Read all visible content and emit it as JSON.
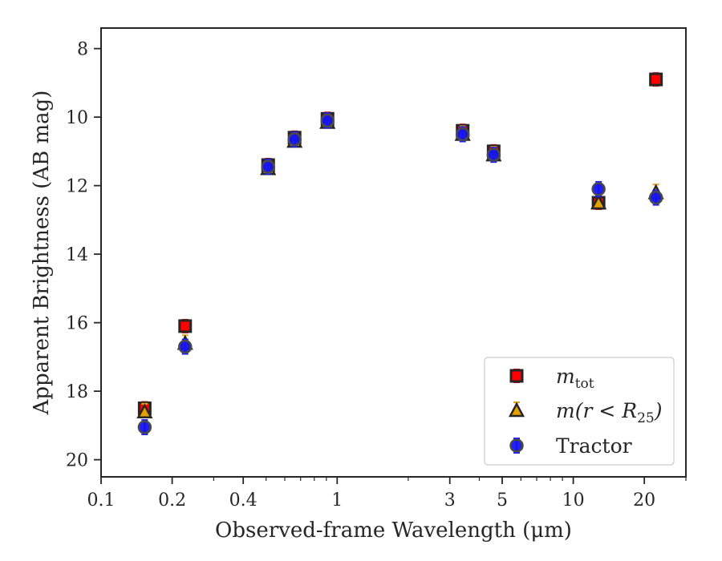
{
  "chart_data": {
    "type": "scatter",
    "xlabel": "Observed-frame Wavelength (μm)",
    "ylabel": "Apparent Brightness (AB mag)",
    "xscale": "log",
    "xlim": [
      0.1,
      30
    ],
    "ylim": [
      20.5,
      7.4
    ],
    "yaxis_inverted": true,
    "grid": false,
    "legend_position": "bottom-right",
    "x_ticks": [
      0.1,
      0.2,
      0.4,
      1,
      3,
      5,
      10,
      20
    ],
    "x_tick_labels": [
      "0.1",
      "0.2",
      "0.4",
      "1",
      "3",
      "5",
      "10",
      "20"
    ],
    "y_ticks": [
      8,
      10,
      12,
      14,
      16,
      18,
      20
    ],
    "y_tick_labels": [
      "8",
      "10",
      "12",
      "14",
      "16",
      "18",
      "20"
    ],
    "series": [
      {
        "name": "m_tot",
        "marker": "square",
        "color": "#ff0000",
        "errorbar_color": "#ff0000",
        "x": [
          0.153,
          0.227,
          0.51,
          0.66,
          0.91,
          3.4,
          4.6,
          12.8,
          22.4
        ],
        "y": [
          18.5,
          16.1,
          11.4,
          10.6,
          10.05,
          10.4,
          11.0,
          12.5,
          8.9
        ]
      },
      {
        "name": "m(r < R25)",
        "marker": "triangle",
        "color": "#e69f00",
        "errorbar_color": "#e6a817",
        "x": [
          0.153,
          0.227,
          0.51,
          0.66,
          0.91,
          3.4,
          4.6,
          12.8,
          22.4
        ],
        "y": [
          18.6,
          16.6,
          11.5,
          10.7,
          10.15,
          10.5,
          11.1,
          12.5,
          12.2
        ]
      },
      {
        "name": "Tractor",
        "marker": "circle",
        "color": "#1515ee",
        "errorbar_color": "#1a1aff",
        "x": [
          0.153,
          0.227,
          0.51,
          0.66,
          0.91,
          3.4,
          4.6,
          12.8,
          22.4
        ],
        "y": [
          19.05,
          16.7,
          11.45,
          10.65,
          10.1,
          10.5,
          11.1,
          12.1,
          12.35
        ]
      }
    ],
    "legend": {
      "entries": [
        {
          "main": "m",
          "sub": "tot"
        },
        {
          "main": "m(r < R",
          "sub": "25",
          "close": ")"
        },
        {
          "main": "Tractor"
        }
      ]
    }
  }
}
